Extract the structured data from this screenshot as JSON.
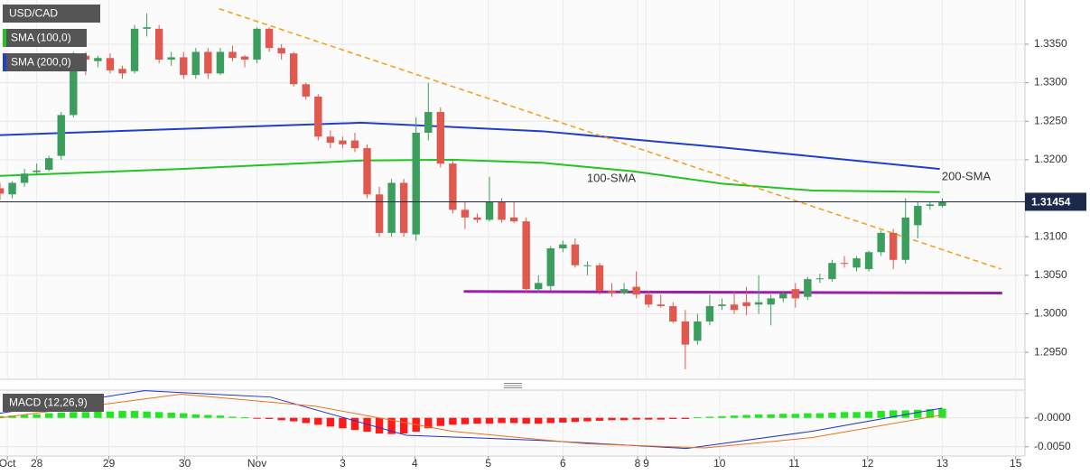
{
  "chart_data": [
    {
      "type": "candlestick",
      "title": "USD/CAD",
      "x": [
        0,
        1,
        2,
        3,
        4,
        5,
        6,
        7,
        8,
        9,
        10,
        11,
        12,
        13,
        14,
        15,
        16,
        17,
        18,
        19,
        20,
        21,
        22,
        23,
        24,
        25,
        26,
        27,
        28,
        29,
        30,
        31,
        32,
        33,
        34,
        35,
        36,
        37,
        38,
        39,
        40,
        41,
        42,
        43,
        44,
        45,
        46,
        47,
        48,
        49,
        50,
        51,
        52,
        53,
        54,
        55,
        56,
        57,
        58,
        59,
        60,
        61,
        62,
        63,
        64,
        65,
        66,
        67,
        68,
        69,
        70,
        71,
        72,
        73,
        74,
        75,
        76,
        77
      ],
      "open": [
        1.3163,
        1.3155,
        1.317,
        1.3184,
        1.3187,
        1.3205,
        1.3258,
        1.3335,
        1.3328,
        1.3332,
        1.3318,
        1.3315,
        1.337,
        1.337,
        1.333,
        1.3333,
        1.331,
        1.334,
        1.3312,
        1.334,
        1.3334,
        1.333,
        1.337,
        1.3345,
        1.3338,
        1.3298,
        1.3282,
        1.323,
        1.3225,
        1.3225,
        1.3215,
        1.3155,
        1.3105,
        1.317,
        1.3103,
        1.3235,
        1.3262,
        1.3195,
        1.3135,
        1.3125,
        1.3122,
        1.3145,
        1.3125,
        1.312,
        1.3032,
        1.3036,
        1.3085,
        1.309,
        1.3062,
        1.3063,
        1.303,
        1.3027,
        1.3035,
        1.3025,
        1.3012,
        1.301,
        1.299,
        1.2965,
        1.299,
        1.301,
        1.3012,
        1.3015,
        1.3012,
        1.3012,
        1.302,
        1.3032,
        1.3022,
        1.3045,
        1.3045,
        1.3066,
        1.306,
        1.3058,
        1.308,
        1.3105,
        1.307,
        1.3115,
        1.314,
        1.314
      ],
      "high": [
        1.317,
        1.3172,
        1.3188,
        1.3195,
        1.3205,
        1.3262,
        1.334,
        1.334,
        1.3335,
        1.3338,
        1.3322,
        1.3375,
        1.339,
        1.3375,
        1.334,
        1.334,
        1.3345,
        1.3345,
        1.3345,
        1.3348,
        1.3336,
        1.3372,
        1.3372,
        1.335,
        1.334,
        1.33,
        1.3285,
        1.3238,
        1.323,
        1.3235,
        1.322,
        1.3165,
        1.3175,
        1.3175,
        1.3255,
        1.33,
        1.3268,
        1.32,
        1.3145,
        1.313,
        1.3178,
        1.315,
        1.3145,
        1.3125,
        1.305,
        1.3088,
        1.3095,
        1.3098,
        1.3068,
        1.3066,
        1.304,
        1.304,
        1.3055,
        1.303,
        1.3025,
        1.3015,
        1.3005,
        1.3,
        1.3025,
        1.302,
        1.303,
        1.3035,
        1.305,
        1.3025,
        1.303,
        1.304,
        1.3048,
        1.3052,
        1.307,
        1.3075,
        1.3075,
        1.3082,
        1.3108,
        1.311,
        1.315,
        1.3145,
        1.3145,
        1.315
      ],
      "low": [
        1.3148,
        1.315,
        1.3165,
        1.318,
        1.3185,
        1.32,
        1.3255,
        1.331,
        1.332,
        1.3312,
        1.3305,
        1.3312,
        1.336,
        1.3325,
        1.3322,
        1.3305,
        1.3305,
        1.3305,
        1.331,
        1.3328,
        1.332,
        1.3325,
        1.334,
        1.333,
        1.3295,
        1.3278,
        1.3225,
        1.3215,
        1.3215,
        1.321,
        1.315,
        1.31,
        1.31,
        1.31,
        1.3095,
        1.3225,
        1.319,
        1.313,
        1.311,
        1.3118,
        1.312,
        1.3118,
        1.3118,
        1.3028,
        1.3028,
        1.303,
        1.308,
        1.306,
        1.305,
        1.3025,
        1.3022,
        1.3025,
        1.302,
        1.3008,
        1.3008,
        1.2988,
        1.2928,
        1.296,
        1.2985,
        1.3005,
        1.3,
        1.2998,
        1.3,
        1.2985,
        1.3015,
        1.3008,
        1.3018,
        1.304,
        1.3042,
        1.306,
        1.3055,
        1.3055,
        1.3075,
        1.3058,
        1.3065,
        1.3098,
        1.3135,
        1.3138
      ],
      "close": [
        1.3156,
        1.317,
        1.3182,
        1.3186,
        1.3202,
        1.3258,
        1.3335,
        1.333,
        1.3332,
        1.3316,
        1.3312,
        1.337,
        1.3372,
        1.333,
        1.3333,
        1.331,
        1.334,
        1.3312,
        1.334,
        1.3332,
        1.333,
        1.337,
        1.3345,
        1.3338,
        1.3298,
        1.3282,
        1.323,
        1.3222,
        1.322,
        1.3215,
        1.3155,
        1.3105,
        1.317,
        1.3105,
        1.3235,
        1.3262,
        1.3195,
        1.3135,
        1.3125,
        1.3122,
        1.3145,
        1.3122,
        1.312,
        1.3032,
        1.304,
        1.3085,
        1.309,
        1.3063,
        1.3063,
        1.303,
        1.3027,
        1.3032,
        1.3025,
        1.3012,
        1.301,
        1.299,
        1.296,
        1.299,
        1.301,
        1.3012,
        1.3005,
        1.301,
        1.3015,
        1.302,
        1.3026,
        1.302,
        1.3045,
        1.3046,
        1.3066,
        1.3065,
        1.3072,
        1.308,
        1.3105,
        1.307,
        1.3125,
        1.314,
        1.3142,
        1.3145
      ],
      "up_color": "#3b9e5c",
      "down_color": "#e0584e",
      "series": [
        {
          "name": "SMA (100,0)",
          "label": "100-SMA",
          "color": "#22c422",
          "x": [
            0,
            14.8,
            29.5,
            36.9,
            44.3,
            51.7,
            59.0,
            66.4,
            76.8
          ],
          "values": [
            1.3179,
            1.3188,
            1.3199,
            1.32,
            1.3196,
            1.3185,
            1.3169,
            1.316,
            1.3158
          ]
        },
        {
          "name": "SMA (200,0)",
          "label": "200-SMA",
          "color": "#1f3fcf",
          "x": [
            0,
            14.8,
            29.5,
            44.3,
            59.0,
            76.8
          ],
          "values": [
            1.3232,
            1.324,
            1.3248,
            1.3237,
            1.3216,
            1.3188
          ]
        }
      ],
      "lines": [
        {
          "color": "#f5a020",
          "dashed": true,
          "x": [
            17.9,
            81.8
          ],
          "values": [
            1.3396,
            1.3058
          ]
        },
        {
          "color": "#9b1fa8",
          "dashed": false,
          "x": [
            37.9,
            81.9
          ],
          "values": [
            1.3029,
            1.3027
          ]
        }
      ],
      "last_price": 1.31454,
      "xlim": [
        0,
        83.76
      ],
      "ylim": [
        1.2915,
        1.3405
      ],
      "yticks": [
        {
          "value": 1.295,
          "label": "1.2950"
        },
        {
          "value": 1.3,
          "label": "1.3000"
        },
        {
          "value": 1.305,
          "label": "1.3050"
        },
        {
          "value": 1.31,
          "label": "1.3100"
        },
        {
          "value": 1.32,
          "label": "1.3200"
        },
        {
          "value": 1.325,
          "label": "1.3250"
        },
        {
          "value": 1.33,
          "label": "1.3300"
        },
        {
          "value": 1.335,
          "label": "1.3350"
        }
      ],
      "grid": true
    },
    {
      "type": "macd",
      "title": "MACD (12,26,9)",
      "x": [
        0,
        1,
        2,
        3,
        4,
        5,
        6,
        7,
        8,
        9,
        10,
        11,
        12,
        13,
        14,
        15,
        16,
        17,
        18,
        19,
        20,
        21,
        22,
        23,
        24,
        25,
        26,
        27,
        28,
        29,
        30,
        31,
        32,
        33,
        34,
        35,
        36,
        37,
        38,
        39,
        40,
        41,
        42,
        43,
        44,
        45,
        46,
        47,
        48,
        49,
        50,
        51,
        52,
        53,
        54,
        55,
        56,
        57,
        58,
        59,
        60,
        61,
        62,
        63,
        64,
        65,
        66,
        67,
        68,
        69,
        70,
        71,
        72,
        73,
        74,
        75,
        76,
        77
      ],
      "histogram": [
        0.0003,
        0.0004,
        0.0005,
        0.0006,
        0.0008,
        0.0009,
        0.001,
        0.001,
        0.0011,
        0.0011,
        0.0012,
        0.0012,
        0.0011,
        0.001,
        0.0009,
        0.0008,
        0.0006,
        0.0005,
        0.0004,
        0.0002,
        0.0001,
        -0.0001,
        -0.0002,
        -0.0004,
        -0.0006,
        -0.0009,
        -0.0012,
        -0.0015,
        -0.0018,
        -0.0021,
        -0.0024,
        -0.0027,
        -0.0028,
        -0.0027,
        -0.0024,
        -0.0018,
        -0.0014,
        -0.0012,
        -0.0011,
        -0.001,
        -0.001,
        -0.0009,
        -0.0009,
        -0.001,
        -0.001,
        -0.0009,
        -0.0008,
        -0.0007,
        -0.0006,
        -0.0005,
        -0.0004,
        -0.0004,
        -0.0003,
        -0.0003,
        -0.0003,
        -0.0002,
        -0.0002,
        0.0001,
        0.0002,
        0.0003,
        0.0004,
        0.0005,
        0.0006,
        0.0006,
        0.0007,
        0.0007,
        0.0008,
        0.0008,
        0.0009,
        0.001,
        0.001,
        0.0011,
        0.0012,
        0.0013,
        0.0013,
        0.0014,
        0.0015,
        0.0016
      ],
      "up_color": "#22e622",
      "down_color": "#ff1a1a",
      "series": [
        {
          "color": "#2233cc",
          "x": [
            0,
            11.8,
            22.1,
            33.2,
            44.3,
            56.1,
            66.4,
            77.0
          ],
          "values": [
            0.0008,
            0.0047,
            0.0036,
            -0.003,
            -0.0039,
            -0.0053,
            -0.0023,
            0.0017
          ]
        },
        {
          "color": "#e8741a",
          "x": [
            0,
            14.8,
            25.8,
            36.9,
            48.0,
            57.6,
            66.4,
            77.0
          ],
          "values": [
            0,
            0.0041,
            0.002,
            -0.0023,
            -0.0045,
            -0.0052,
            -0.0034,
            0.0005
          ]
        }
      ],
      "xlim": [
        0,
        83.76
      ],
      "ylim": [
        -0.0066,
        0.0048
      ],
      "yticks": [
        {
          "value": 0,
          "label": "-0.0000"
        },
        {
          "value": -0.005,
          "label": "-0.0050"
        }
      ],
      "xticks": [
        {
          "value": 0.6,
          "label": "Oct"
        },
        {
          "value": 3.0,
          "label": "28"
        },
        {
          "value": 8.9,
          "label": "29"
        },
        {
          "value": 15.1,
          "label": "30"
        },
        {
          "value": 21.0,
          "label": "Nov"
        },
        {
          "value": 28.0,
          "label": "3"
        },
        {
          "value": 33.9,
          "label": "4"
        },
        {
          "value": 39.9,
          "label": "5"
        },
        {
          "value": 46.0,
          "label": "6"
        },
        {
          "value": 52.1,
          "label": "8"
        },
        {
          "value": 52.8,
          "label": "9"
        },
        {
          "value": 58.8,
          "label": "10"
        },
        {
          "value": 64.9,
          "label": "11"
        },
        {
          "value": 70.9,
          "label": "12"
        },
        {
          "value": 77.0,
          "label": "13"
        },
        {
          "value": 83.0,
          "label": "15"
        }
      ]
    }
  ]
}
